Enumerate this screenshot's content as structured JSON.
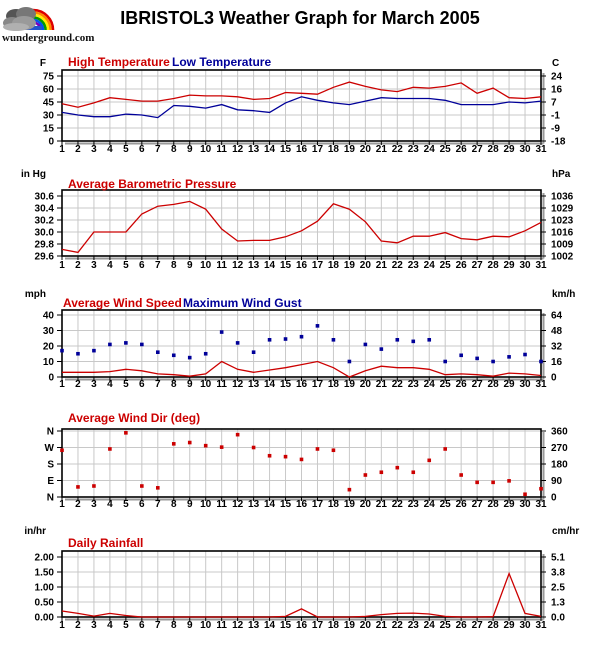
{
  "header": {
    "title": "IBRISTOL3 Weather Graph for March 2005",
    "logo_text": "wunderground.com"
  },
  "colors": {
    "red": "#cc0000",
    "blue": "#000099",
    "grid": "#c8c8c8",
    "border": "#000000",
    "shadow": "#999999"
  },
  "days": [
    1,
    2,
    3,
    4,
    5,
    6,
    7,
    8,
    9,
    10,
    11,
    12,
    13,
    14,
    15,
    16,
    17,
    18,
    19,
    20,
    21,
    22,
    23,
    24,
    25,
    26,
    27,
    28,
    29,
    30,
    31
  ],
  "chart_data": [
    {
      "name": "temperature",
      "type": "line",
      "unit_left": "F",
      "unit_right": "C",
      "legend": [
        {
          "label": "High Temperature",
          "color": "red"
        },
        {
          "label": "Low Temperature",
          "color": "blue"
        }
      ],
      "ytick_labels_left": [
        "75",
        "60",
        "45",
        "30",
        "15",
        "0"
      ],
      "ytick_values": [
        75,
        60,
        45,
        30,
        15,
        0
      ],
      "ytick_labels_right": [
        "24",
        "16",
        "7",
        "-1",
        "-9",
        "-18"
      ],
      "series": [
        {
          "name": "high-temperature",
          "style": "line",
          "color": "red",
          "values": [
            43,
            39,
            44,
            50,
            48,
            46,
            46,
            49,
            53,
            52,
            52,
            51,
            48,
            49,
            56,
            55,
            54,
            62,
            68,
            63,
            59,
            57,
            62,
            61,
            63,
            67,
            55,
            61,
            50,
            49,
            51
          ]
        },
        {
          "name": "low-temperature",
          "style": "line",
          "color": "blue",
          "values": [
            33,
            30,
            28,
            28,
            31,
            30,
            27,
            41,
            40,
            38,
            42,
            36,
            35,
            33,
            44,
            51,
            47,
            44,
            42,
            46,
            50,
            49,
            49,
            49,
            47,
            42,
            42,
            42,
            45,
            44,
            46
          ]
        }
      ]
    },
    {
      "name": "barometric-pressure",
      "type": "line",
      "unit_left": "in Hg",
      "unit_right": "hPa",
      "legend": [
        {
          "label": "Average Barometric Pressure",
          "color": "red"
        }
      ],
      "ytick_labels_left": [
        "30.6",
        "30.4",
        "30.2",
        "30.0",
        "29.8",
        "29.6"
      ],
      "ytick_values": [
        30.6,
        30.4,
        30.2,
        30.0,
        29.8,
        29.6
      ],
      "ytick_labels_right": [
        "1036",
        "1029",
        "1023",
        "1016",
        "1009",
        "1002"
      ],
      "series": [
        {
          "name": "average-barometric-pressure",
          "style": "line",
          "color": "red",
          "values": [
            29.71,
            29.66,
            30.0,
            30.0,
            30.0,
            30.3,
            30.43,
            30.46,
            30.51,
            30.38,
            30.05,
            29.85,
            29.86,
            29.86,
            29.92,
            30.02,
            30.18,
            30.47,
            30.38,
            30.17,
            29.85,
            29.82,
            29.93,
            29.93,
            29.99,
            29.89,
            29.87,
            29.93,
            29.92,
            30.02,
            30.16
          ]
        }
      ]
    },
    {
      "name": "wind-speed",
      "type": "line-scatter",
      "unit_left": "mph",
      "unit_right": "km/h",
      "legend": [
        {
          "label": "Average Wind Speed",
          "color": "red"
        },
        {
          "label": "Maximum Wind Gust",
          "color": "blue"
        }
      ],
      "ytick_labels_left": [
        "40",
        "30",
        "20",
        "10",
        "0"
      ],
      "ytick_values": [
        40,
        30,
        20,
        10,
        0
      ],
      "ytick_labels_right": [
        "64",
        "48",
        "32",
        "16",
        "0"
      ],
      "series": [
        {
          "name": "average-wind-speed",
          "style": "line",
          "color": "red",
          "values": [
            3,
            3,
            3,
            3.5,
            5,
            4,
            2,
            1.5,
            0.5,
            2,
            10,
            5,
            3,
            4.5,
            6,
            8,
            10,
            6,
            0,
            4,
            7,
            6,
            6,
            5,
            1.5,
            2,
            1.5,
            0.5,
            2.5,
            2,
            1
          ]
        },
        {
          "name": "maximum-wind-gust",
          "style": "dots",
          "color": "blue",
          "values": [
            17,
            15,
            17,
            21,
            22,
            21,
            16,
            14,
            12.5,
            15,
            29,
            22,
            16,
            24,
            24.5,
            26,
            33,
            24,
            10,
            21,
            18,
            24,
            23,
            24,
            10,
            14,
            12,
            10,
            13,
            14.5,
            10
          ]
        }
      ]
    },
    {
      "name": "wind-direction",
      "type": "scatter",
      "unit_left": "",
      "unit_right": "",
      "legend": [
        {
          "label": "Average Wind Dir (deg)",
          "color": "red"
        }
      ],
      "ytick_labels_left": [
        "N",
        "W",
        "S",
        "E",
        "N"
      ],
      "ytick_left_color": "red",
      "ytick_values": [
        360,
        270,
        180,
        90,
        0
      ],
      "ytick_labels_right": [
        "360",
        "270",
        "180",
        "90",
        "0"
      ],
      "series": [
        {
          "name": "average-wind-direction",
          "style": "dots",
          "color": "red",
          "values": [
            255,
            55,
            60,
            262,
            350,
            60,
            50,
            290,
            297,
            280,
            272,
            340,
            270,
            225,
            220,
            205,
            262,
            255,
            40,
            120,
            135,
            160,
            135,
            200,
            262,
            120,
            80,
            80,
            88,
            15,
            45
          ]
        }
      ]
    },
    {
      "name": "daily-rainfall",
      "type": "line",
      "unit_left": "in/hr",
      "unit_right": "cm/hr",
      "legend": [
        {
          "label": "Daily Rainfall",
          "color": "red"
        }
      ],
      "ytick_labels_left": [
        "2.00",
        "1.50",
        "1.00",
        "0.50",
        "0.00"
      ],
      "ytick_values": [
        2.0,
        1.5,
        1.0,
        0.5,
        0.0
      ],
      "ytick_labels_right": [
        "5.1",
        "3.8",
        "2.5",
        "1.3",
        "0.0"
      ],
      "series": [
        {
          "name": "daily-rainfall",
          "style": "line",
          "color": "red",
          "values": [
            0.2,
            0.12,
            0.03,
            0.12,
            0.05,
            0,
            0,
            0,
            0,
            0,
            0,
            0,
            0,
            0,
            0.02,
            0.27,
            0,
            0,
            0,
            0.02,
            0.08,
            0.12,
            0.13,
            0.1,
            0.02,
            0,
            0,
            0.01,
            1.45,
            0.12,
            0.02
          ]
        }
      ]
    }
  ]
}
